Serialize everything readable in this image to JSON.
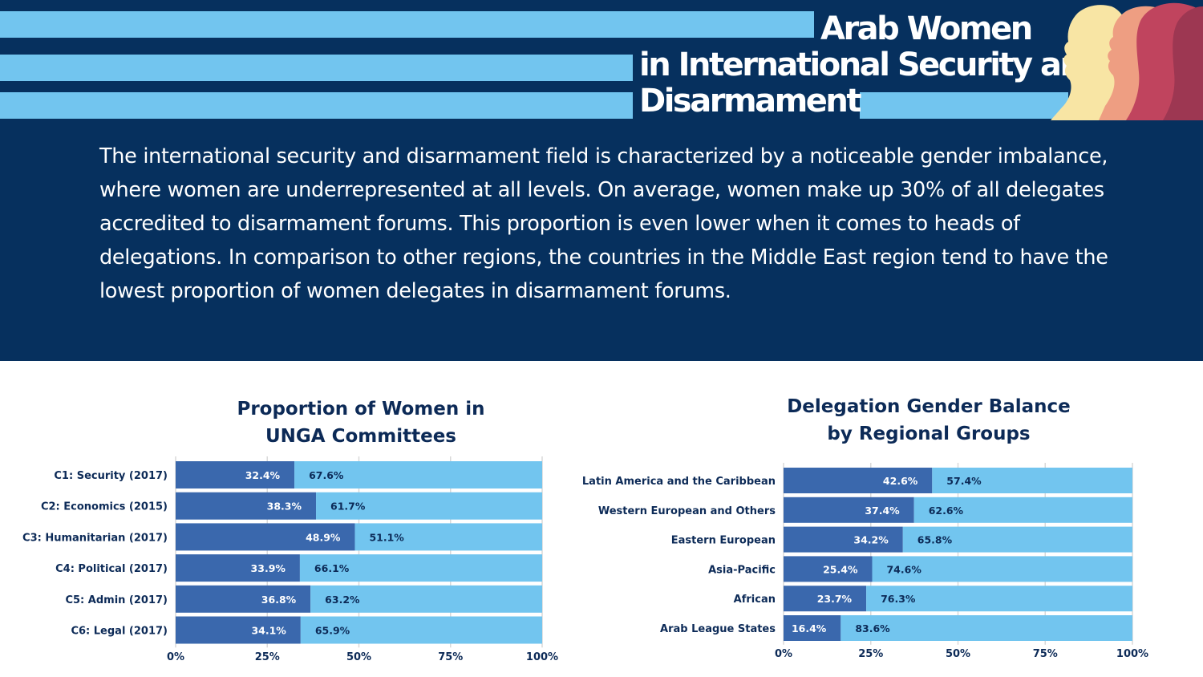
{
  "header": {
    "title_line1": "Arab Women",
    "title_line2": "in International Security and",
    "title_line3": "Disarmament"
  },
  "intro": {
    "text": "The international security and disarmament field is characterized by a noticeable gender imbalance, where women are underrepresented at all levels. On average, women make up 30% of all delegates accredited to disarmament forums. This proportion is even lower when it comes to heads of delegations. In comparison to other regions, the countries in the Middle East region tend to have the lowest proportion of women delegates in disarmament forums."
  },
  "colors": {
    "navy": "#06305e",
    "light_blue": "#72c5ef",
    "women_bar": "#3a68ad",
    "men_bar": "#72c5ef",
    "text_dark": "#0c2a57"
  },
  "chart_data": [
    {
      "type": "bar",
      "orientation": "horizontal",
      "stacked": true,
      "title_line1": "Proportion of Women in",
      "title_line2": "UNGA Committees",
      "categories": [
        "C1: Security (2017)",
        "C2: Economics (2015)",
        "C3: Humanitarian (2017)",
        "C4: Political (2017)",
        "C5: Admin (2017)",
        "C6: Legal (2017)"
      ],
      "series": [
        {
          "values": [
            32.4,
            38.3,
            48.9,
            33.9,
            36.8,
            34.1
          ],
          "labels": [
            "32.4%",
            "38.3%",
            "48.9%",
            "33.9%",
            "36.8%",
            "34.1%"
          ]
        },
        {
          "values": [
            67.6,
            61.7,
            51.1,
            66.1,
            63.2,
            65.9
          ],
          "labels": [
            "67.6%",
            "61.7%",
            "51.1%",
            "66.1%",
            "63.2%",
            "65.9%"
          ]
        }
      ],
      "xlim": [
        0,
        100
      ],
      "xticks": [
        "0%",
        "25%",
        "50%",
        "75%",
        "100%"
      ],
      "grid": true
    },
    {
      "type": "bar",
      "orientation": "horizontal",
      "stacked": true,
      "title_line1": "Delegation Gender Balance",
      "title_line2": "by Regional Groups",
      "categories": [
        "Latin America and the Caribbean",
        "Western European and Others",
        "Eastern European",
        "Asia-Pacific",
        "African",
        "Arab League States"
      ],
      "series": [
        {
          "values": [
            42.6,
            37.4,
            34.2,
            25.4,
            23.7,
            16.4
          ],
          "labels": [
            "42.6%",
            "37.4%",
            "34.2%",
            "25.4%",
            "23.7%",
            "16.4%"
          ]
        },
        {
          "values": [
            57.4,
            62.6,
            65.8,
            74.6,
            76.3,
            83.6
          ],
          "labels": [
            "57.4%",
            "62.6%",
            "65.8%",
            "74.6%",
            "76.3%",
            "83.6%"
          ]
        }
      ],
      "xlim": [
        0,
        100
      ],
      "xticks": [
        "0%",
        "25%",
        "50%",
        "75%",
        "100%"
      ],
      "grid": true
    }
  ]
}
